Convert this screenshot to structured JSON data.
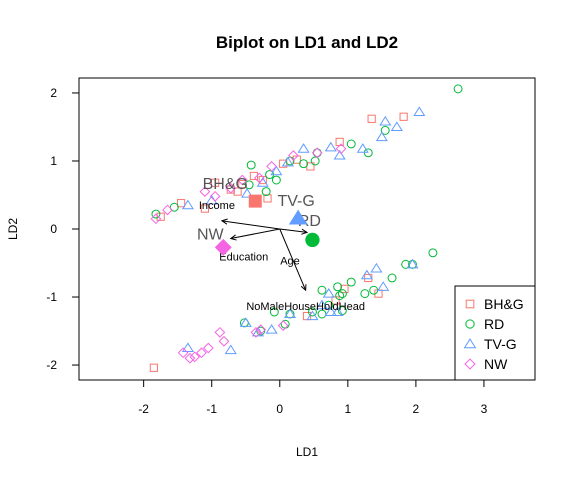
{
  "chart_data": {
    "type": "scatter",
    "title": "Biplot on LD1 and LD2",
    "xlabel": "LD1",
    "ylabel": "LD2",
    "xlim": [
      -2.95,
      3.75
    ],
    "ylim": [
      -2.22,
      2.22
    ],
    "xticks": [
      -2,
      -1,
      0,
      1,
      2,
      3
    ],
    "yticks": [
      -2,
      -1,
      0,
      1,
      2
    ],
    "grid": false,
    "legend_position": "bottom-right",
    "series": [
      {
        "name": "BH&G",
        "marker": "square",
        "color": "#F8766D",
        "points": [
          [
            -1.85,
            -2.04
          ],
          [
            -0.95,
            0.68
          ],
          [
            -0.72,
            0.58
          ],
          [
            -0.55,
            0.66
          ],
          [
            -0.38,
            0.78
          ],
          [
            -0.25,
            0.72
          ],
          [
            0.05,
            0.96
          ],
          [
            0.25,
            1.02
          ],
          [
            0.45,
            0.92
          ],
          [
            0.88,
            1.28
          ],
          [
            1.35,
            1.62
          ],
          [
            1.82,
            1.65
          ],
          [
            -1.45,
            0.38
          ],
          [
            -1.1,
            0.3
          ],
          [
            -1.75,
            0.18
          ],
          [
            0.4,
            -1.28
          ],
          [
            0.82,
            -1.05
          ],
          [
            0.95,
            -0.88
          ],
          [
            1.3,
            -0.72
          ],
          [
            1.45,
            -0.95
          ],
          [
            -0.18,
            0.45
          ],
          [
            -0.62,
            0.55
          ]
        ]
      },
      {
        "name": "RD",
        "marker": "circle",
        "color": "#00BA38",
        "points": [
          [
            2.62,
            2.06
          ],
          [
            1.55,
            1.45
          ],
          [
            1.3,
            1.12
          ],
          [
            1.05,
            1.25
          ],
          [
            0.55,
            1.12
          ],
          [
            0.52,
            1.0
          ],
          [
            0.15,
            1.0
          ],
          [
            0.35,
            0.96
          ],
          [
            -0.42,
            0.94
          ],
          [
            -0.15,
            0.8
          ],
          [
            -0.05,
            0.72
          ],
          [
            -0.45,
            0.65
          ],
          [
            -0.2,
            0.55
          ],
          [
            -1.55,
            0.32
          ],
          [
            -1.82,
            0.22
          ],
          [
            2.25,
            -0.35
          ],
          [
            1.95,
            -0.52
          ],
          [
            1.85,
            -0.52
          ],
          [
            1.65,
            -0.72
          ],
          [
            1.38,
            -0.9
          ],
          [
            1.25,
            -0.95
          ],
          [
            0.85,
            -0.85
          ],
          [
            0.92,
            -0.95
          ],
          [
            0.72,
            -1.12
          ],
          [
            0.62,
            -1.25
          ],
          [
            0.48,
            -1.22
          ],
          [
            0.15,
            -1.25
          ],
          [
            -0.08,
            -1.22
          ],
          [
            0.08,
            -1.4
          ],
          [
            -0.28,
            -1.5
          ],
          [
            -0.52,
            -1.38
          ],
          [
            0.92,
            -1.2
          ],
          [
            0.62,
            -0.9
          ],
          [
            1.05,
            -0.78
          ],
          [
            0.88,
            -0.98
          ]
        ]
      },
      {
        "name": "TV-G",
        "marker": "triangle",
        "color": "#619CFF",
        "points": [
          [
            2.05,
            1.72
          ],
          [
            1.72,
            1.5
          ],
          [
            1.55,
            1.58
          ],
          [
            1.5,
            1.35
          ],
          [
            1.22,
            1.18
          ],
          [
            0.88,
            1.08
          ],
          [
            0.75,
            1.2
          ],
          [
            0.35,
            1.18
          ],
          [
            0.12,
            0.98
          ],
          [
            -0.05,
            0.85
          ],
          [
            -0.25,
            0.68
          ],
          [
            -0.48,
            0.52
          ],
          [
            -1.0,
            0.42
          ],
          [
            -1.35,
            0.35
          ],
          [
            1.95,
            -0.52
          ],
          [
            1.42,
            -0.58
          ],
          [
            1.52,
            -0.85
          ],
          [
            1.28,
            -0.68
          ],
          [
            0.72,
            -0.95
          ],
          [
            0.62,
            -1.12
          ],
          [
            0.85,
            -1.22
          ],
          [
            0.48,
            -1.28
          ],
          [
            0.15,
            -1.25
          ],
          [
            -0.12,
            -1.48
          ],
          [
            -0.32,
            -1.52
          ],
          [
            -0.5,
            -1.38
          ],
          [
            -0.72,
            -1.78
          ],
          [
            -1.35,
            -1.75
          ],
          [
            0.75,
            -1.22
          ]
        ]
      },
      {
        "name": "NW",
        "marker": "diamond",
        "color": "#F564E3",
        "points": [
          [
            -1.82,
            0.15
          ],
          [
            -1.65,
            0.28
          ],
          [
            -1.1,
            0.55
          ],
          [
            -0.95,
            0.48
          ],
          [
            -0.72,
            0.6
          ],
          [
            -0.55,
            0.72
          ],
          [
            -0.3,
            0.75
          ],
          [
            -0.12,
            0.92
          ],
          [
            0.2,
            1.08
          ],
          [
            0.55,
            1.12
          ],
          [
            0.9,
            1.18
          ],
          [
            -0.88,
            -1.52
          ],
          [
            -0.82,
            -1.65
          ],
          [
            -1.05,
            -1.75
          ],
          [
            -1.15,
            -1.82
          ],
          [
            -1.25,
            -1.88
          ],
          [
            -1.42,
            -1.82
          ],
          [
            -1.32,
            -1.9
          ],
          [
            -0.28,
            -1.48
          ],
          [
            0.05,
            -1.42
          ],
          [
            -0.35,
            -1.52
          ]
        ]
      }
    ],
    "centroids": [
      {
        "name": "BH&G",
        "label": "BH&G",
        "x": -0.36,
        "y": 0.41,
        "marker": "square",
        "color": "#F8766D"
      },
      {
        "name": "RD",
        "label": "RD",
        "x": 0.48,
        "y": -0.16,
        "marker": "circle",
        "color": "#00BA38"
      },
      {
        "name": "TV-G",
        "label": "TV-G",
        "x": 0.27,
        "y": 0.16,
        "marker": "triangle",
        "color": "#619CFF"
      },
      {
        "name": "NW",
        "label": "NW",
        "x": -0.83,
        "y": -0.27,
        "marker": "diamond",
        "color": "#F564E3"
      }
    ],
    "arrows": [
      {
        "label": "Income",
        "x": -0.85,
        "y": 0.12
      },
      {
        "label": "Education",
        "x": -0.72,
        "y": -0.14
      },
      {
        "label": "Age",
        "x": 0.4,
        "y": -0.05
      },
      {
        "label": "NoMaleHouseHoldHead",
        "x": 0.38,
        "y": -0.9
      }
    ]
  }
}
